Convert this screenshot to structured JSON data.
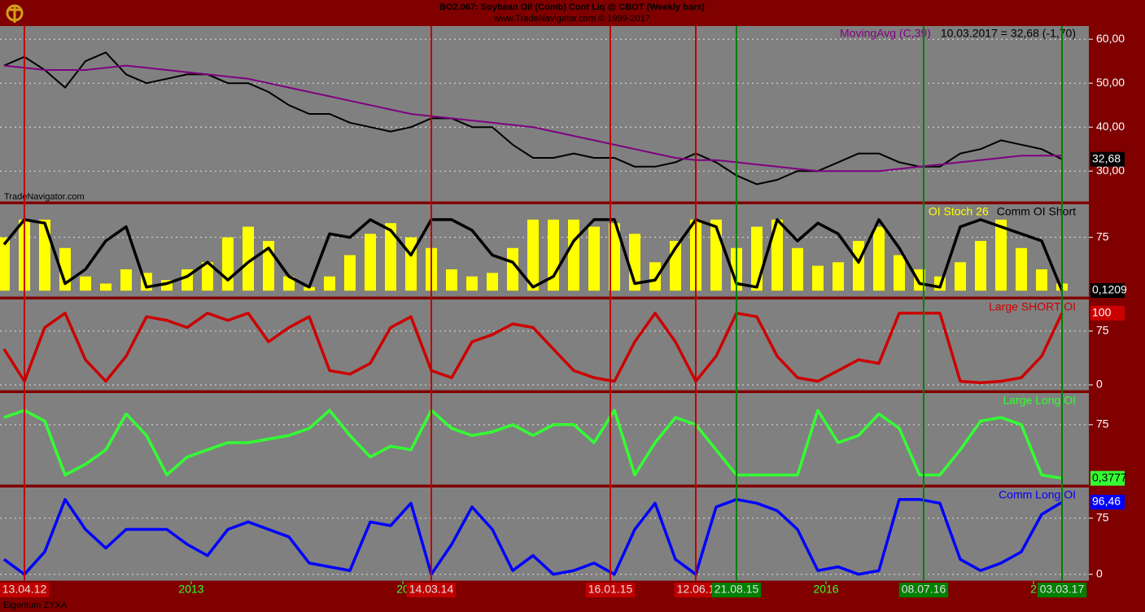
{
  "header": {
    "title": "BO2.067: Soybean Oil (Comb) Cont Liq @ CBOT (Weekly bars)",
    "subtitle": "www.TradeNavigator.com © 1999-2017",
    "watermark": "TradeNavigator.com",
    "footer": "Eigentum ZYXA"
  },
  "x_axis": {
    "x": [
      -5,
      0,
      5,
      10,
      15,
      20,
      25,
      30,
      35,
      40,
      45,
      50,
      55,
      60,
      65,
      70,
      75,
      80,
      85,
      90,
      95,
      100,
      105,
      110,
      115,
      120,
      125,
      130,
      135,
      140,
      145,
      150,
      155,
      160,
      165,
      170,
      175,
      180,
      185,
      190,
      195,
      200,
      205,
      210,
      215,
      220,
      225,
      230,
      235,
      240,
      245,
      250,
      255
    ],
    "xlim": [
      -6,
      261.6
    ],
    "xticks": [
      {
        "value": 0,
        "label": "13.04.12",
        "color": "#c00000"
      },
      {
        "value": 41,
        "label": "2013"
      },
      {
        "value": 93,
        "label": "20"
      },
      {
        "value": 100,
        "label": "14.03.14",
        "color": "#c00000"
      },
      {
        "value": 144,
        "label": "16.01.15",
        "color": "#c00000"
      },
      {
        "value": 165,
        "label": "12.06.1",
        "color": "#c00000"
      },
      {
        "value": 175,
        "label": "21.08.15",
        "color": "#008000"
      },
      {
        "value": 197,
        "label": "2016"
      },
      {
        "value": 221,
        "label": "08.07.16",
        "color": "#008000"
      },
      {
        "value": 248,
        "label": "2"
      },
      {
        "value": 255,
        "label": "03.03.17",
        "color": "#008000"
      }
    ]
  },
  "chart_data": [
    {
      "type": "line",
      "annotation": "10.03.2017 = 32,68 (-1,70)",
      "ylim": [
        23,
        63
      ],
      "yticks": [
        {
          "value": 30,
          "label": "30,00"
        },
        {
          "value": 40,
          "label": "40,00"
        },
        {
          "value": 50,
          "label": "50,00"
        },
        {
          "value": 60,
          "label": "60,00"
        }
      ],
      "series": [
        {
          "color": "#000000",
          "last_label": "32,68",
          "values": [
            54,
            56,
            53,
            49,
            55,
            57,
            52,
            50,
            51,
            52,
            52,
            50,
            50,
            48,
            45,
            43,
            43,
            41,
            40,
            39,
            40,
            42,
            42,
            40,
            40,
            36,
            33,
            33,
            34,
            33,
            33,
            31,
            31,
            32,
            34,
            32,
            29,
            27,
            28,
            30,
            30,
            32,
            34,
            34,
            32,
            31,
            31,
            34,
            35,
            37,
            36,
            35,
            32.68
          ]
        },
        {
          "name": "MovingAvg (C,39)",
          "color": "#800080",
          "values": [
            54,
            53.5,
            53,
            53,
            53,
            53.5,
            54,
            53.5,
            53,
            52.5,
            52,
            51.5,
            51,
            50,
            49,
            48,
            47,
            46,
            45,
            44,
            43,
            42.5,
            42,
            41.5,
            41,
            40.5,
            40,
            39,
            38,
            37,
            36,
            35,
            34,
            33,
            32.5,
            32.5,
            32,
            31.5,
            31,
            30.5,
            30,
            30,
            30,
            30,
            30.5,
            31,
            31.5,
            32,
            32.5,
            33,
            33.5,
            33.5,
            33.5
          ]
        }
      ]
    },
    {
      "type": "line",
      "ylim": [
        -9,
        121.6
      ],
      "yticks": [
        75
      ],
      "series": [
        {
          "name": "OI Stoch 26",
          "type": "bar",
          "color": "#ffff00",
          "values": [
            75,
            100,
            100,
            60,
            20,
            10,
            30,
            25,
            15,
            30,
            40,
            75,
            90,
            70,
            20,
            5,
            20,
            50,
            80,
            95,
            75,
            60,
            30,
            20,
            25,
            60,
            100,
            100,
            100,
            90,
            95,
            80,
            40,
            70,
            100,
            100,
            60,
            90,
            100,
            60,
            35,
            40,
            70,
            90,
            50,
            30,
            20,
            40,
            70,
            100,
            60,
            30,
            10
          ]
        },
        {
          "name": "Comm OI Short",
          "color": "#000000",
          "last_label": "0,1209",
          "values": [
            65,
            100,
            95,
            10,
            30,
            70,
            90,
            5,
            10,
            20,
            40,
            15,
            40,
            60,
            20,
            5,
            80,
            75,
            100,
            85,
            50,
            100,
            100,
            85,
            50,
            40,
            5,
            20,
            70,
            100,
            100,
            10,
            15,
            60,
            100,
            90,
            10,
            5,
            100,
            70,
            95,
            80,
            40,
            100,
            60,
            10,
            5,
            90,
            100,
            90,
            80,
            70,
            0.1209
          ]
        }
      ]
    },
    {
      "type": "line",
      "ylim": [
        -8,
        119
      ],
      "yticks": [
        0,
        75
      ],
      "series": [
        {
          "name": "Large SHORT OI",
          "color": "#cc0000",
          "last_label": "100",
          "values": [
            50,
            5,
            80,
            100,
            35,
            5,
            40,
            95,
            90,
            80,
            100,
            90,
            100,
            60,
            80,
            95,
            20,
            15,
            30,
            80,
            95,
            20,
            10,
            60,
            70,
            85,
            80,
            50,
            20,
            10,
            5,
            60,
            100,
            60,
            5,
            40,
            100,
            95,
            40,
            10,
            5,
            20,
            35,
            30,
            100,
            100,
            100,
            5,
            3,
            5,
            10,
            40,
            100
          ]
        }
      ]
    },
    {
      "type": "line",
      "ylim": [
        -9,
        119
      ],
      "yticks": [
        75
      ],
      "series": [
        {
          "name": "Large Long OI",
          "color": "#33ff33",
          "last_label": "0,3777",
          "values": [
            85,
            95,
            80,
            5,
            20,
            40,
            90,
            60,
            5,
            30,
            40,
            50,
            50,
            55,
            60,
            70,
            95,
            60,
            30,
            45,
            40,
            95,
            70,
            60,
            65,
            75,
            60,
            75,
            75,
            50,
            95,
            5,
            50,
            85,
            75,
            40,
            5,
            5,
            5,
            5,
            95,
            50,
            60,
            90,
            70,
            5,
            5,
            40,
            80,
            85,
            75,
            5,
            0.3777
          ]
        }
      ]
    },
    {
      "type": "line",
      "ylim": [
        -9,
        116
      ],
      "yticks": [
        0,
        75
      ],
      "series": [
        {
          "name": "Comm Long OI",
          "color": "#0000ff",
          "last_label": "96,46",
          "values": [
            20,
            0,
            30,
            100,
            60,
            35,
            60,
            60,
            60,
            40,
            25,
            60,
            70,
            60,
            50,
            15,
            10,
            5,
            70,
            65,
            95,
            0,
            40,
            90,
            60,
            5,
            25,
            0,
            5,
            15,
            0,
            60,
            95,
            20,
            0,
            90,
            100,
            95,
            85,
            60,
            5,
            10,
            0,
            5,
            100,
            100,
            95,
            20,
            5,
            15,
            30,
            80,
            96.46
          ]
        }
      ]
    }
  ]
}
